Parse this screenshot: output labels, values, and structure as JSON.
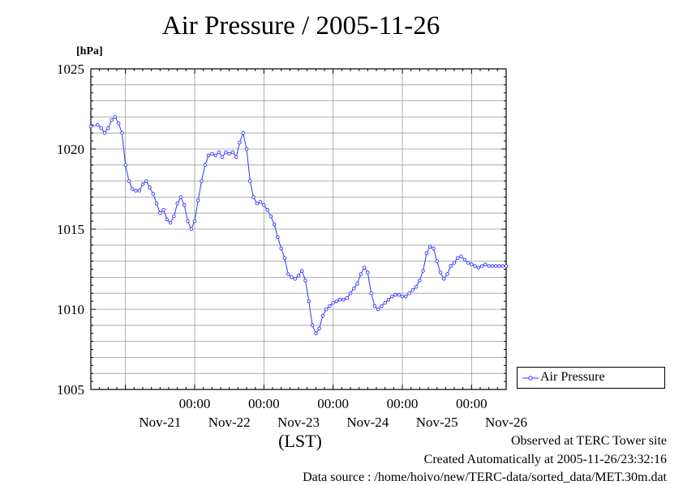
{
  "chart_data": {
    "type": "line",
    "title": "Air Pressure / 2005-11-26",
    "ylabel": "[hPa]",
    "xlabel": "(LST)",
    "ylim": [
      1005,
      1025
    ],
    "yticks": [
      1005,
      1010,
      1015,
      1020,
      1025
    ],
    "xlim_days": [
      0,
      6
    ],
    "xticks_time": [
      "00:00",
      "00:00",
      "00:00",
      "00:00",
      "00:00"
    ],
    "x_day_labels": [
      "Nov-21",
      "Nov-22",
      "Nov-23",
      "Nov-24",
      "Nov-25",
      "Nov-26"
    ],
    "grid": true,
    "legend_position": "bottom-right outside",
    "series": [
      {
        "name": "Air Pressure",
        "color": "#3333ff",
        "marker": "circle",
        "x_unit": "days from plot start (Nov-20 12:00)",
        "x": [
          0.0,
          0.1,
          0.15,
          0.2,
          0.25,
          0.3,
          0.35,
          0.4,
          0.45,
          0.5,
          0.55,
          0.6,
          0.65,
          0.7,
          0.75,
          0.8,
          0.85,
          0.9,
          0.95,
          1.0,
          1.05,
          1.1,
          1.15,
          1.2,
          1.25,
          1.3,
          1.35,
          1.4,
          1.45,
          1.5,
          1.55,
          1.6,
          1.65,
          1.7,
          1.75,
          1.8,
          1.85,
          1.9,
          1.95,
          2.0,
          2.05,
          2.1,
          2.15,
          2.2,
          2.25,
          2.3,
          2.35,
          2.4,
          2.45,
          2.5,
          2.55,
          2.6,
          2.65,
          2.7,
          2.75,
          2.8,
          2.85,
          2.9,
          2.95,
          3.0,
          3.05,
          3.1,
          3.15,
          3.2,
          3.25,
          3.3,
          3.35,
          3.4,
          3.45,
          3.5,
          3.55,
          3.6,
          3.65,
          3.7,
          3.75,
          3.8,
          3.85,
          3.9,
          3.95,
          4.0,
          4.05,
          4.1,
          4.15,
          4.2,
          4.25,
          4.3,
          4.35,
          4.4,
          4.45,
          4.5,
          4.55,
          4.6,
          4.65,
          4.7,
          4.75,
          4.8,
          4.85,
          4.9,
          4.95,
          5.0,
          5.05,
          5.1,
          5.15,
          5.2,
          5.25,
          5.3,
          5.35,
          5.4,
          5.45,
          5.5,
          5.55,
          5.6,
          5.65,
          5.7,
          5.75,
          5.8,
          5.85,
          5.9,
          5.95,
          6.0
        ],
        "values": [
          1021.4,
          1021.5,
          1021.3,
          1021.0,
          1021.3,
          1021.8,
          1022.0,
          1021.6,
          1021.0,
          1019.0,
          1018.0,
          1017.5,
          1017.4,
          1017.4,
          1017.8,
          1018.0,
          1017.6,
          1017.2,
          1016.6,
          1016.0,
          1016.2,
          1015.6,
          1015.4,
          1015.8,
          1016.6,
          1017.0,
          1016.5,
          1015.5,
          1015.0,
          1015.5,
          1016.8,
          1018.0,
          1019.0,
          1019.6,
          1019.7,
          1019.6,
          1019.8,
          1019.5,
          1019.8,
          1019.7,
          1019.8,
          1019.5,
          1020.4,
          1021.0,
          1020.0,
          1018.0,
          1017.0,
          1016.6,
          1016.7,
          1016.5,
          1016.2,
          1015.8,
          1015.3,
          1014.5,
          1013.8,
          1013.2,
          1012.2,
          1012.0,
          1011.9,
          1012.1,
          1012.4,
          1011.8,
          1010.5,
          1009.0,
          1008.5,
          1008.8,
          1009.6,
          1010.0,
          1010.2,
          1010.4,
          1010.5,
          1010.6,
          1010.6,
          1010.7,
          1011.0,
          1011.3,
          1011.6,
          1012.2,
          1012.6,
          1012.3,
          1011.0,
          1010.2,
          1010.0,
          1010.2,
          1010.4,
          1010.6,
          1010.8,
          1010.9,
          1010.9,
          1010.8,
          1010.8,
          1011.0,
          1011.2,
          1011.4,
          1011.8,
          1012.4,
          1013.5,
          1013.9,
          1013.8,
          1013.0,
          1012.3,
          1011.9,
          1012.2,
          1012.7,
          1012.9,
          1013.2,
          1013.3,
          1013.1,
          1012.9,
          1012.8,
          1012.7,
          1012.6,
          1012.7,
          1012.8,
          1012.7,
          1012.7,
          1012.7,
          1012.7,
          1012.7,
          1012.7
        ]
      }
    ]
  },
  "footer": {
    "observed": "Observed at TERC Tower site",
    "created": "Created Automatically at 2005-11-26/23:32:16",
    "source": "Data source : /home/hoivo/new/TERC-data/sorted_data/MET.30m.dat"
  },
  "colors": {
    "series": "#3333ff",
    "grid": "#9a9a9a",
    "axis": "#000000"
  }
}
